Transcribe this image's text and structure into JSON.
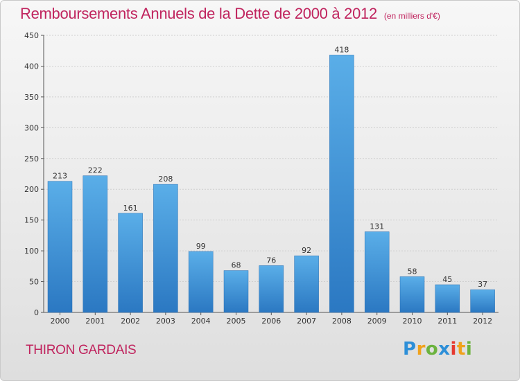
{
  "chart_data": {
    "type": "bar",
    "title": "Remboursements Annuels de la Dette de 2000 à 2012",
    "unit": "(en milliers d'€)",
    "categories": [
      "2000",
      "2001",
      "2002",
      "2003",
      "2004",
      "2005",
      "2006",
      "2007",
      "2008",
      "2009",
      "2010",
      "2011",
      "2012"
    ],
    "values": [
      213,
      222,
      161,
      208,
      99,
      68,
      76,
      92,
      418,
      131,
      58,
      45,
      37
    ],
    "ylim": [
      0,
      450
    ],
    "yticks": [
      0,
      50,
      100,
      150,
      200,
      250,
      300,
      350,
      400,
      450
    ],
    "grid": true,
    "bar_color": "#3a8fd6"
  },
  "commune": "THIRON GARDAIS",
  "logo": {
    "letters": [
      "P",
      "r",
      "o",
      "x",
      "i",
      "t",
      "i"
    ],
    "colors": [
      "#2d8fd8",
      "#f0a21c",
      "#6cb33f",
      "#2d8fd8",
      "#e6392f",
      "#f0a21c",
      "#6cb33f"
    ]
  }
}
